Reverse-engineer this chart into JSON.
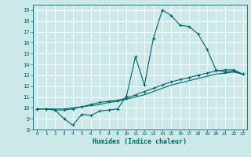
{
  "title": "",
  "xlabel": "Humidex (Indice chaleur)",
  "ylabel": "",
  "bg_color": "#cce8e8",
  "line_color": "#006666",
  "xlim": [
    -0.5,
    23.5
  ],
  "ylim": [
    8,
    19.5
  ],
  "xticks": [
    0,
    1,
    2,
    3,
    4,
    5,
    6,
    7,
    8,
    9,
    10,
    11,
    12,
    13,
    14,
    15,
    16,
    17,
    18,
    19,
    20,
    21,
    22,
    23
  ],
  "yticks": [
    8,
    9,
    10,
    11,
    12,
    13,
    14,
    15,
    16,
    17,
    18,
    19
  ],
  "line1_x": [
    0,
    1,
    2,
    3,
    4,
    5,
    6,
    7,
    8,
    9,
    10,
    11,
    12,
    13,
    14,
    15,
    16,
    17,
    18,
    19,
    20,
    21,
    22,
    23
  ],
  "line1_y": [
    9.9,
    9.9,
    9.8,
    9.0,
    8.4,
    9.4,
    9.3,
    9.7,
    9.8,
    9.9,
    11.1,
    14.7,
    12.1,
    16.4,
    19.0,
    18.5,
    17.6,
    17.5,
    16.8,
    15.4,
    13.5,
    13.3,
    13.4,
    13.1
  ],
  "line2_x": [
    0,
    1,
    2,
    3,
    4,
    5,
    6,
    7,
    8,
    9,
    10,
    11,
    12,
    13,
    14,
    15,
    16,
    17,
    18,
    19,
    20,
    21,
    22,
    23
  ],
  "line2_y": [
    9.9,
    9.9,
    9.8,
    9.8,
    9.9,
    10.1,
    10.3,
    10.5,
    10.6,
    10.7,
    10.9,
    11.2,
    11.5,
    11.8,
    12.1,
    12.4,
    12.6,
    12.8,
    13.0,
    13.2,
    13.4,
    13.5,
    13.5,
    13.1
  ],
  "line3_x": [
    0,
    1,
    2,
    3,
    4,
    5,
    6,
    7,
    8,
    9,
    10,
    11,
    12,
    13,
    14,
    15,
    16,
    17,
    18,
    19,
    20,
    21,
    22,
    23
  ],
  "line3_y": [
    9.9,
    9.9,
    9.9,
    9.9,
    10.0,
    10.1,
    10.2,
    10.3,
    10.5,
    10.6,
    10.8,
    11.0,
    11.2,
    11.5,
    11.8,
    12.1,
    12.3,
    12.5,
    12.7,
    12.9,
    13.1,
    13.2,
    13.3,
    13.1
  ]
}
